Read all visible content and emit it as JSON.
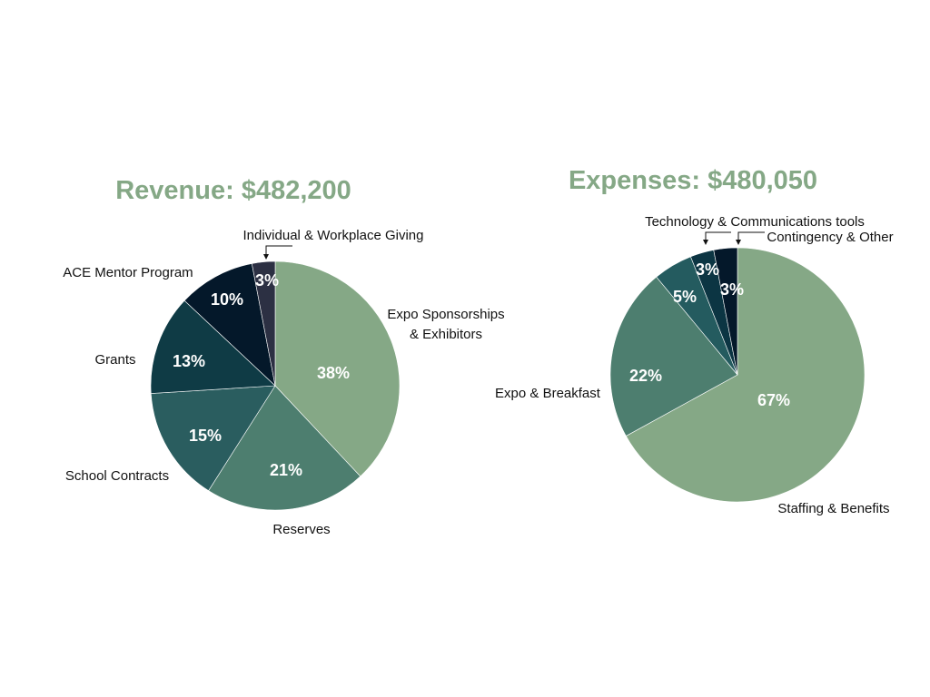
{
  "chart_data": [
    {
      "type": "pie",
      "title": "Revenue: $482,200",
      "title_color": "#85a886",
      "categories": [
        "Expo Sponsorships & Exhibitors",
        "Reserves",
        "School Contracts",
        "Grants",
        "ACE Mentor Program",
        "Individual & Workplace Giving"
      ],
      "label_lines": [
        [
          "Expo Sponsorships",
          "& Exhibitors"
        ],
        [
          "Reserves"
        ],
        [
          "School Contracts"
        ],
        [
          "Grants"
        ],
        [
          "ACE Mentor Program"
        ],
        [
          "Individual & Workplace Giving"
        ]
      ],
      "values": [
        38,
        21,
        15,
        13,
        10,
        3
      ],
      "value_labels": [
        "38%",
        "21%",
        "15%",
        "13%",
        "10%",
        "3%"
      ],
      "colors": [
        "#85a886",
        "#4d7e6f",
        "#2a5d5f",
        "#0f3b45",
        "#04182a",
        "#2c3043"
      ]
    },
    {
      "type": "pie",
      "title": "Expenses: $480,050",
      "title_color": "#85a886",
      "categories": [
        "Staffing & Benefits",
        "Expo & Breakfast",
        "",
        "Technology & Communications tools",
        "Contingency & Other"
      ],
      "label_lines": [
        [
          "Staffing & Benefits"
        ],
        [
          "Expo & Breakfast"
        ],
        [],
        [
          "Technology & Communications tools"
        ],
        [
          "Contingency & Other"
        ]
      ],
      "values": [
        67,
        22,
        5,
        3,
        3
      ],
      "value_labels": [
        "67%",
        "22%",
        "5%",
        "3%",
        "3%"
      ],
      "colors": [
        "#85a886",
        "#4d7e6f",
        "#245b5f",
        "#0c3543",
        "#04182a"
      ]
    }
  ]
}
